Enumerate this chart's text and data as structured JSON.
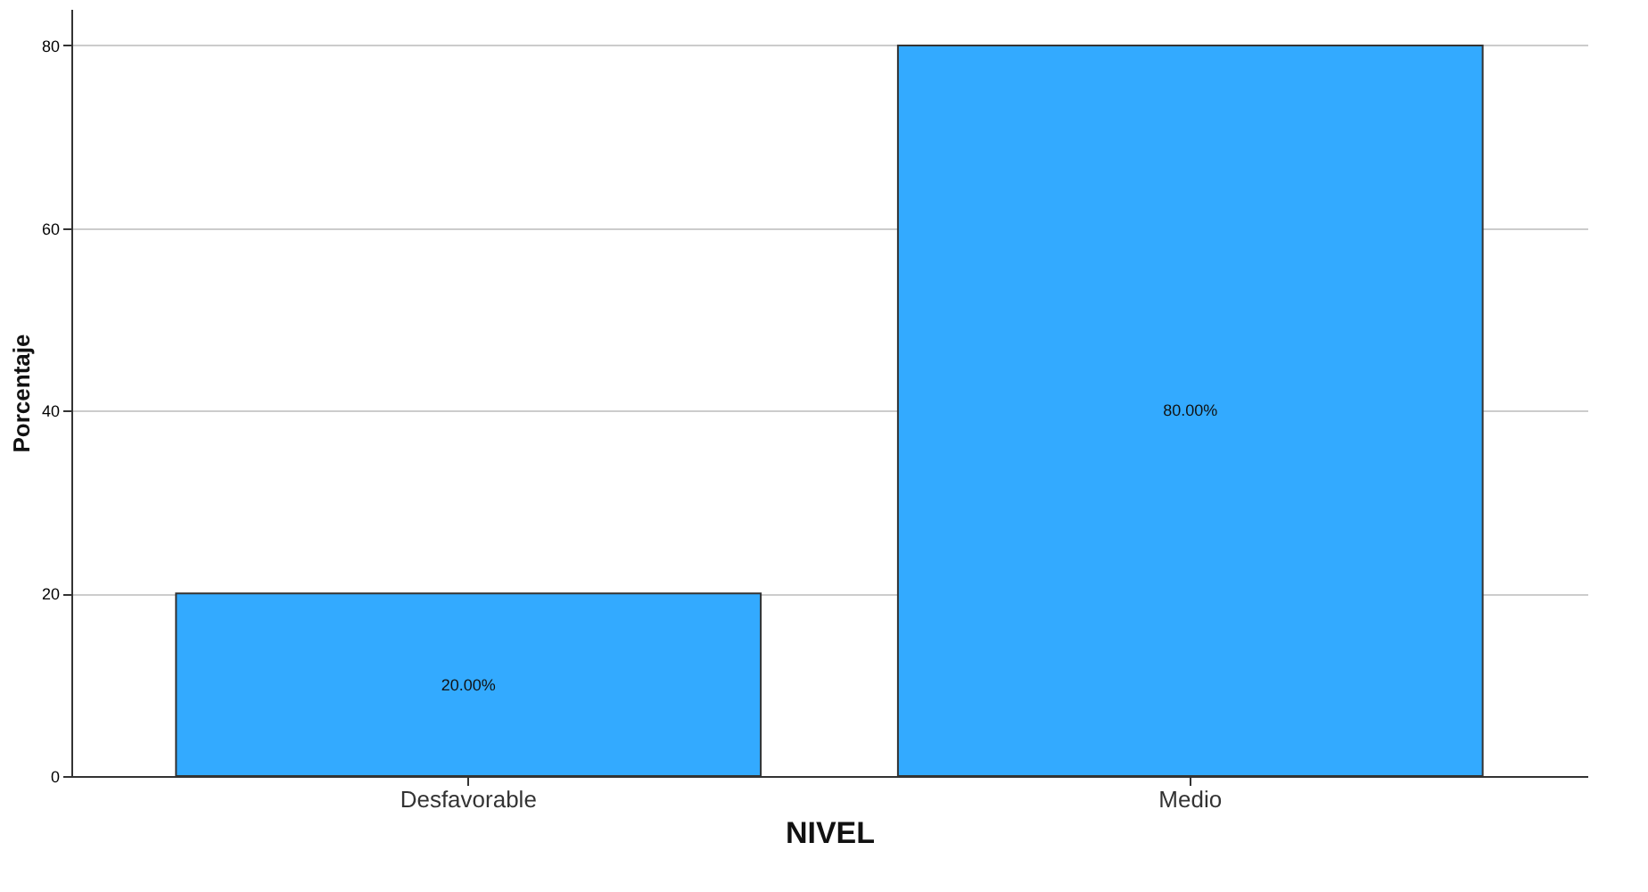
{
  "chart_data": {
    "type": "bar",
    "xlabel": "NIVEL",
    "ylabel": "Porcentaje",
    "categories": [
      "Desfavorable",
      "Medio"
    ],
    "values": [
      20,
      80
    ],
    "color": "#33aaff",
    "value_labels": [
      "20.00%",
      "80.00%"
    ],
    "ylim": [
      0,
      84
    ],
    "yticks": [
      0,
      20,
      40,
      60,
      80
    ],
    "grid": "y"
  }
}
